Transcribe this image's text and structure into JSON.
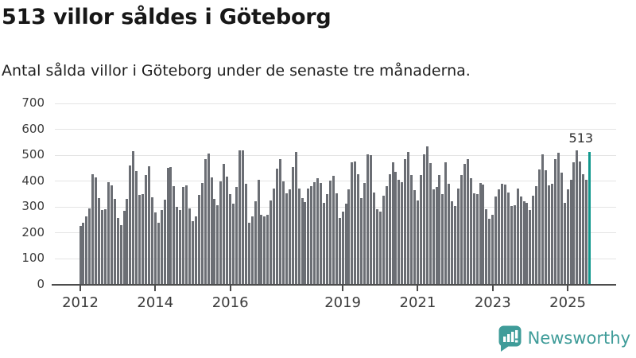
{
  "header": {
    "title": "513 villor såldes i Göteborg",
    "subtitle": "Antal sålda villor i Göteborg under de senaste tre månaderna."
  },
  "chart_data": {
    "type": "bar",
    "title": "513 villor såldes i Göteborg",
    "xlabel": "",
    "ylabel": "",
    "x_start": "2012-01",
    "x_frequency": "monthly",
    "ylim": [
      0,
      700
    ],
    "yticks": [
      0,
      100,
      200,
      300,
      400,
      500,
      600,
      700
    ],
    "xticks": [
      {
        "label": "2012",
        "month_index": 0
      },
      {
        "label": "2014",
        "month_index": 24
      },
      {
        "label": "2016",
        "month_index": 48
      },
      {
        "label": "2019",
        "month_index": 84
      },
      {
        "label": "2021",
        "month_index": 108
      },
      {
        "label": "2023",
        "month_index": 132
      },
      {
        "label": "2025",
        "month_index": 156
      }
    ],
    "grid": true,
    "bar_color": "#6b6e74",
    "highlight_color": "#12988e",
    "values": [
      228,
      240,
      265,
      296,
      426,
      414,
      336,
      289,
      292,
      397,
      383,
      333,
      259,
      231,
      287,
      331,
      459,
      515,
      438,
      346,
      349,
      423,
      456,
      338,
      280,
      240,
      290,
      330,
      452,
      455,
      382,
      302,
      290,
      377,
      384,
      295,
      247,
      264,
      346,
      392,
      484,
      507,
      415,
      331,
      308,
      400,
      466,
      418,
      349,
      312,
      377,
      520,
      518,
      390,
      240,
      264,
      322,
      404,
      270,
      265,
      271,
      325,
      373,
      448,
      484,
      400,
      353,
      369,
      453,
      513,
      373,
      336,
      320,
      373,
      382,
      395,
      410,
      392,
      316,
      350,
      402,
      421,
      353,
      259,
      281,
      312,
      369,
      472,
      476,
      428,
      336,
      392,
      503,
      500,
      356,
      292,
      281,
      343,
      382,
      428,
      474,
      435,
      404,
      397,
      484,
      513,
      425,
      366,
      325,
      425,
      505,
      533,
      469,
      369,
      377,
      425,
      351,
      472,
      390,
      322,
      305,
      373,
      425,
      466,
      484,
      412,
      353,
      351,
      392,
      387,
      292,
      254,
      271,
      341,
      369,
      390,
      387,
      356,
      305,
      308,
      373,
      341,
      322,
      315,
      288,
      343,
      382,
      445,
      503,
      441,
      384,
      390,
      484,
      510,
      433,
      315,
      369,
      404,
      472,
      520,
      476,
      428,
      404,
      513
    ],
    "highlight": {
      "index": 163,
      "value": 513,
      "label": "513"
    }
  },
  "branding": {
    "name": "Newsworthy",
    "icon": "newsworthy-speech-bubble-chart-icon",
    "color": "#3f9c99"
  }
}
